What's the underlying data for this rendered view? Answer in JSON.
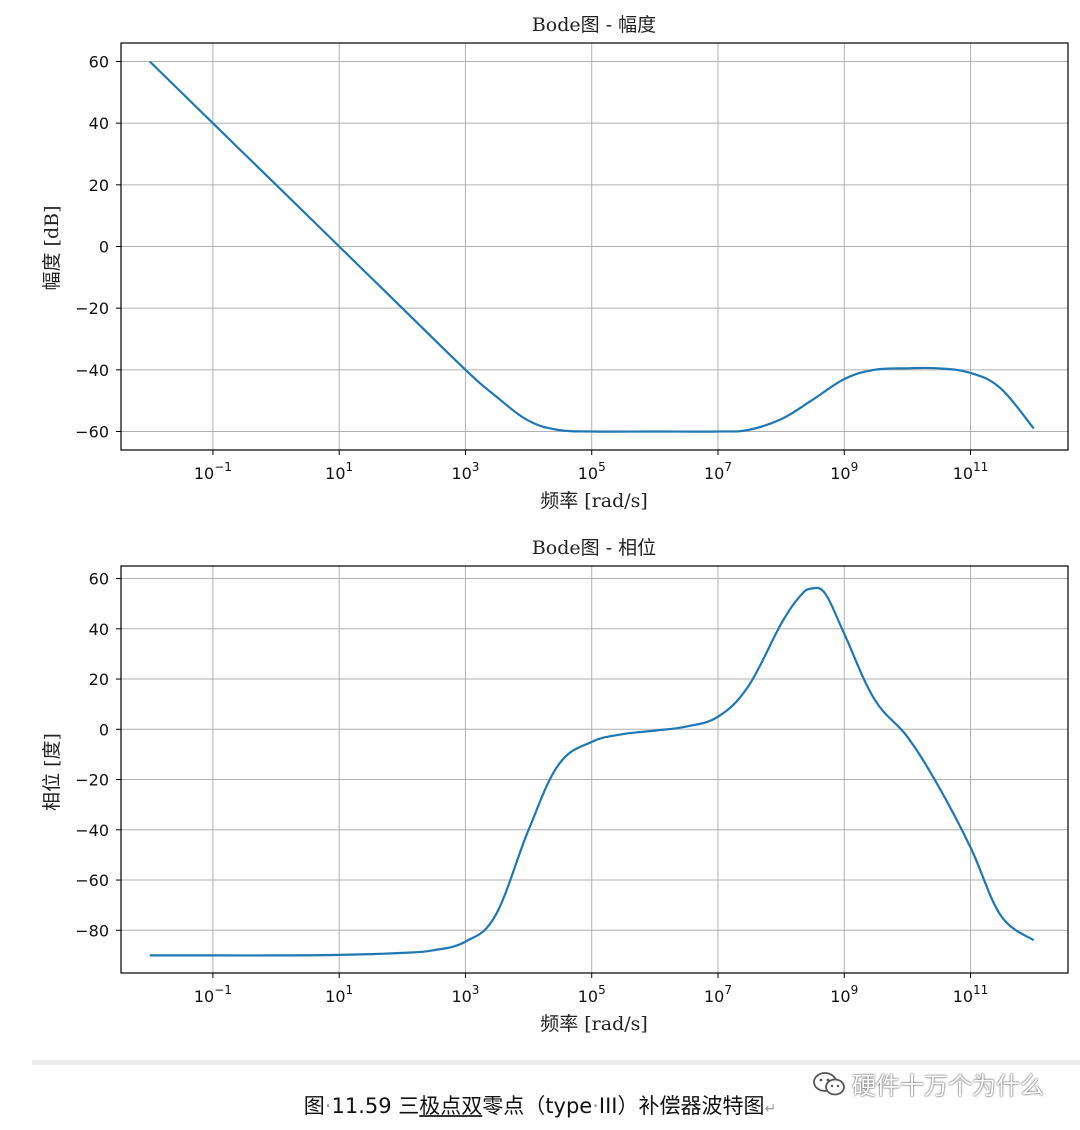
{
  "chart_data": [
    {
      "type": "line",
      "title": "Bode图 - 幅度",
      "xlabel": "频率 [rad/s]",
      "ylabel": "幅度 [dB]",
      "xscale": "log",
      "xlim": [
        0.0035,
        3500000000000.0
      ],
      "ylim": [
        -66,
        66
      ],
      "xticks": [
        {
          "value": 0.1,
          "base": "10",
          "exp": "−1"
        },
        {
          "value": 10,
          "base": "10",
          "exp": "1"
        },
        {
          "value": 1000,
          "base": "10",
          "exp": "3"
        },
        {
          "value": 100000,
          "base": "10",
          "exp": "5"
        },
        {
          "value": 10000000,
          "base": "10",
          "exp": "7"
        },
        {
          "value": 1000000000,
          "base": "10",
          "exp": "9"
        },
        {
          "value": 100000000000,
          "base": "10",
          "exp": "11"
        }
      ],
      "yticks": [
        {
          "value": 60,
          "label": "60"
        },
        {
          "value": 40,
          "label": "40"
        },
        {
          "value": 20,
          "label": "20"
        },
        {
          "value": 0,
          "label": "0"
        },
        {
          "value": -20,
          "label": "−20"
        },
        {
          "value": -40,
          "label": "−40"
        },
        {
          "value": -60,
          "label": "−60"
        }
      ],
      "grid": true,
      "series": [
        {
          "color": "#1f77b4",
          "x": [
            0.01,
            0.1,
            1,
            10,
            100,
            1000,
            3000,
            10000,
            30000,
            100000,
            1000000,
            10000000,
            30000000,
            100000000,
            300000000,
            1000000000,
            3000000000,
            10000000000,
            30000000000,
            100000000000,
            300000000000,
            1000000000000
          ],
          "y": [
            60,
            40,
            20,
            0,
            -20,
            -40,
            -48.5,
            -56.5,
            -59.5,
            -60,
            -60,
            -60,
            -59.5,
            -56,
            -50,
            -43,
            -40,
            -39.5,
            -39.5,
            -41,
            -46,
            -59
          ]
        }
      ]
    },
    {
      "type": "line",
      "title": "Bode图 - 相位",
      "xlabel": "频率 [rad/s]",
      "ylabel": "相位 [度]",
      "xscale": "log",
      "xlim": [
        0.0035,
        3500000000000.0
      ],
      "ylim": [
        -97,
        65
      ],
      "xticks": [
        {
          "value": 0.1,
          "base": "10",
          "exp": "−1"
        },
        {
          "value": 10,
          "base": "10",
          "exp": "1"
        },
        {
          "value": 1000,
          "base": "10",
          "exp": "3"
        },
        {
          "value": 100000,
          "base": "10",
          "exp": "5"
        },
        {
          "value": 10000000,
          "base": "10",
          "exp": "7"
        },
        {
          "value": 1000000000,
          "base": "10",
          "exp": "9"
        },
        {
          "value": 100000000000,
          "base": "10",
          "exp": "11"
        }
      ],
      "yticks": [
        {
          "value": 60,
          "label": "60"
        },
        {
          "value": 40,
          "label": "40"
        },
        {
          "value": 20,
          "label": "20"
        },
        {
          "value": 0,
          "label": "0"
        },
        {
          "value": -20,
          "label": "−20"
        },
        {
          "value": -40,
          "label": "−40"
        },
        {
          "value": -60,
          "label": "−60"
        },
        {
          "value": -80,
          "label": "−80"
        }
      ],
      "grid": true,
      "series": [
        {
          "color": "#1f77b4",
          "x": [
            0.01,
            0.1,
            1,
            10,
            100,
            300,
            1000,
            3000,
            10000,
            30000,
            100000,
            300000,
            1000000,
            3000000,
            10000000,
            30000000,
            100000000,
            200000000,
            300000000,
            500000000,
            1000000000,
            3000000000,
            10000000000,
            30000000000,
            100000000000,
            300000000000,
            1000000000000
          ],
          "y": [
            -90,
            -90,
            -90,
            -89.8,
            -89,
            -88,
            -84.5,
            -74,
            -40,
            -14,
            -5,
            -2,
            -0.5,
            1,
            5,
            17,
            42,
            53,
            56,
            54,
            38,
            12,
            -3,
            -22,
            -47,
            -74,
            -84
          ]
        }
      ]
    }
  ],
  "caption": {
    "prefix": "图",
    "dot1": "·",
    "number": "11.59",
    "space1": " ",
    "part1": "三",
    "part2": "极点双",
    "part3": "零点（type",
    "dot2": "·",
    "part4": "III）补偿器波特图",
    "return_mark": "↵"
  },
  "watermark": {
    "text": "硬件十万个为什么",
    "icon": "wechat-icon"
  }
}
